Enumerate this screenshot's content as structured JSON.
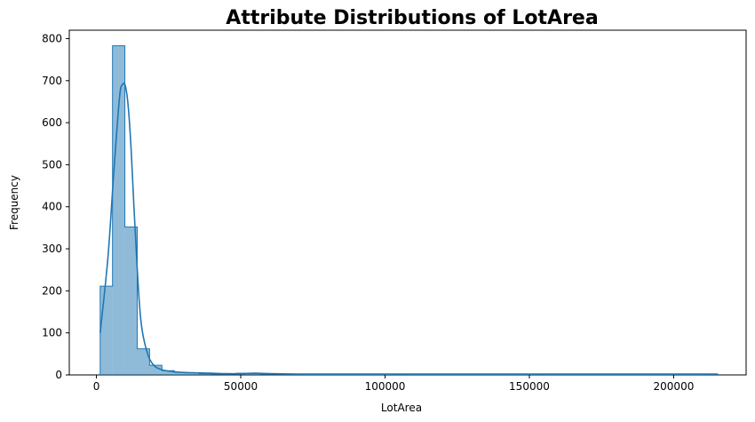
{
  "chart_data": {
    "type": "bar",
    "title": "Attribute Distributions of LotArea",
    "xlabel": "LotArea",
    "ylabel": "Frequency",
    "xlim": [
      -9400,
      225100
    ],
    "ylim": [
      0,
      820
    ],
    "x_ticks": [
      0,
      50000,
      100000,
      150000,
      200000
    ],
    "y_ticks": [
      0,
      100,
      200,
      300,
      400,
      500,
      600,
      700,
      800
    ],
    "grid": false,
    "legend": "none",
    "bin_start": 1300,
    "bin_width": 4280,
    "values": [
      211,
      783,
      352,
      62,
      23,
      10,
      6,
      5,
      3,
      2,
      3,
      4,
      3,
      2,
      2,
      2,
      1,
      1,
      1,
      1,
      1,
      1,
      1,
      1,
      2,
      1,
      1,
      1,
      1,
      1,
      1,
      1,
      1,
      1,
      1,
      2,
      1,
      1,
      1,
      1,
      1,
      1,
      1,
      1,
      1,
      1,
      1,
      1,
      1,
      2
    ],
    "kde": {
      "x": [
        1300,
        4000,
        6000,
        8000,
        9000,
        10000,
        11000,
        12000,
        13000,
        14000,
        15000,
        16000,
        18000,
        20000,
        22000,
        25000,
        30000,
        35000,
        40000,
        45000,
        50000,
        55000,
        60000,
        70000,
        80000,
        100000,
        115000,
        130000,
        150000,
        160000,
        170000,
        190000,
        210000,
        215000
      ],
      "y": [
        100,
        280,
        480,
        660,
        690,
        688,
        640,
        540,
        400,
        270,
        160,
        100,
        45,
        22,
        14,
        9,
        6,
        5,
        4,
        3,
        3,
        4,
        3,
        2,
        2,
        2,
        2,
        2,
        2,
        2,
        2,
        2,
        2,
        2
      ]
    },
    "colors": {
      "bar_fill": "#1f77b4",
      "bar_edge": "#1f77b4",
      "kde_line": "#1f77b4"
    }
  }
}
